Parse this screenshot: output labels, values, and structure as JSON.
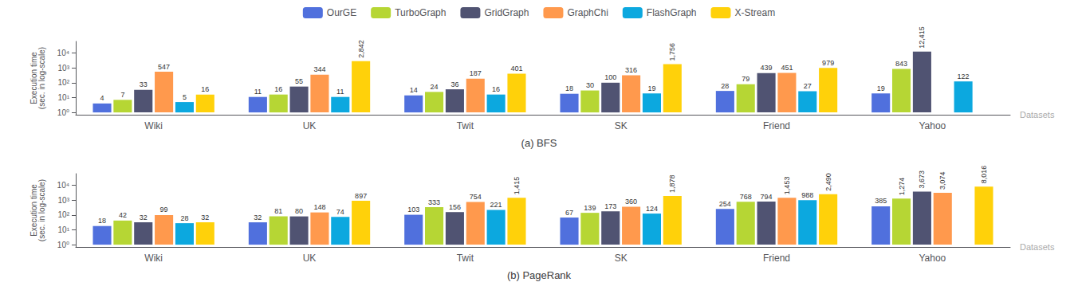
{
  "chart_data": [
    {
      "type": "bar",
      "title": "(a) BFS",
      "ylabel": "Execution time\n(sec. in log-scale)",
      "xlabel": "Datasets",
      "categories": [
        "Wiki",
        "UK",
        "Twit",
        "SK",
        "Friend",
        "Yahoo"
      ],
      "series": [
        {
          "name": "OurGE",
          "values": [
            4,
            11,
            14,
            18,
            28,
            19
          ]
        },
        {
          "name": "TurboGraph",
          "values": [
            7,
            16,
            24,
            30,
            79,
            843
          ]
        },
        {
          "name": "GridGraph",
          "values": [
            33,
            55,
            36,
            100,
            439,
            12415
          ],
          "value_labels": [
            "33",
            "55",
            "36",
            "100",
            "439",
            "12,415"
          ]
        },
        {
          "name": "GraphChi",
          "values": [
            547,
            344,
            187,
            316,
            451,
            null
          ]
        },
        {
          "name": "FlashGraph",
          "values": [
            5,
            11,
            16,
            19,
            27,
            122
          ]
        },
        {
          "name": "X-Stream",
          "values": [
            16,
            2842,
            401,
            1756,
            979,
            null
          ],
          "value_labels": [
            "16",
            "2,842",
            "401",
            "1,756",
            "979",
            null
          ]
        }
      ],
      "log": "y",
      "ylim": [
        0.7,
        60000
      ],
      "yticks": [
        {
          "value": 1,
          "label": "10⁰"
        },
        {
          "value": 10,
          "label": "10¹"
        },
        {
          "value": 100,
          "label": "10²"
        },
        {
          "value": 1000,
          "label": "10³"
        },
        {
          "value": 10000,
          "label": "10⁴"
        }
      ],
      "grid": false,
      "data_labels": true,
      "legend": "top"
    },
    {
      "type": "bar",
      "title": "(b) PageRank",
      "ylabel": "Execution time\n(sec. in log-scale)",
      "xlabel": "Datasets",
      "categories": [
        "Wiki",
        "UK",
        "Twit",
        "SK",
        "Friend",
        "Yahoo"
      ],
      "series": [
        {
          "name": "OurGE",
          "values": [
            18,
            32,
            103,
            67,
            254,
            385
          ]
        },
        {
          "name": "TurboGraph",
          "values": [
            42,
            81,
            333,
            139,
            768,
            1274
          ],
          "value_labels": [
            "42",
            "81",
            "333",
            "139",
            "768",
            "1,274"
          ]
        },
        {
          "name": "GridGraph",
          "values": [
            32,
            80,
            156,
            173,
            794,
            3673
          ],
          "value_labels": [
            "32",
            "80",
            "156",
            "173",
            "794",
            "3,673"
          ]
        },
        {
          "name": "GraphChi",
          "values": [
            99,
            148,
            754,
            360,
            1453,
            3074
          ],
          "value_labels": [
            "99",
            "148",
            "754",
            "360",
            "1,453",
            "3,074"
          ]
        },
        {
          "name": "FlashGraph",
          "values": [
            28,
            74,
            221,
            124,
            988,
            null
          ]
        },
        {
          "name": "X-Stream",
          "values": [
            32,
            897,
            1415,
            1878,
            2490,
            8016
          ],
          "value_labels": [
            "32",
            "897",
            "1,415",
            "1,878",
            "2,490",
            "8,016"
          ]
        }
      ],
      "log": "y",
      "ylim": [
        0.7,
        60000
      ],
      "yticks": [
        {
          "value": 1,
          "label": "10⁰"
        },
        {
          "value": 10,
          "label": "10¹"
        },
        {
          "value": 100,
          "label": "10²"
        },
        {
          "value": 1000,
          "label": "10³"
        },
        {
          "value": 10000,
          "label": "10⁴"
        }
      ],
      "grid": false,
      "data_labels": true
    }
  ]
}
